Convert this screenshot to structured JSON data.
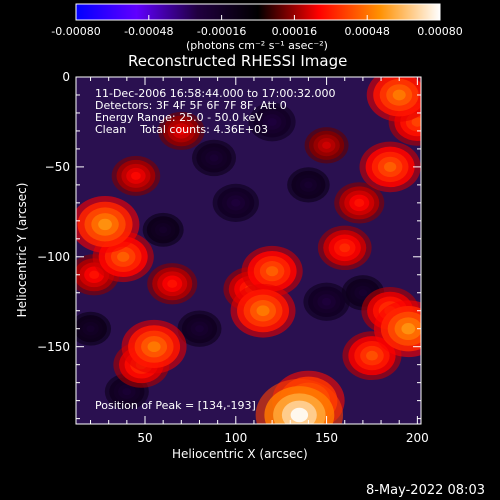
{
  "colorbar": {
    "tick_labels": [
      "-0.00080",
      "-0.00048",
      "-0.00016",
      "0.00016",
      "0.00048",
      "0.00080"
    ],
    "tick_values": [
      -0.0008,
      -0.00048,
      -0.00016,
      0.00016,
      0.00048,
      0.0008
    ],
    "range": [
      -0.0008,
      0.0008
    ],
    "units_label": "(photons cm⁻² s⁻¹ asec⁻²)",
    "colors": [
      "#0000ff",
      "#6000ff",
      "#200040",
      "#000000",
      "#ff0000",
      "#ff9000",
      "#ffffff"
    ]
  },
  "chart_data": {
    "type": "heatmap",
    "title": "Reconstructed RHESSI Image",
    "xlabel": "Heliocentric X (arcsec)",
    "ylabel": "Heliocentric Y (arcsec)",
    "xlim": [
      12,
      202
    ],
    "ylim": [
      -193,
      0
    ],
    "x_ticks": [
      50,
      100,
      150,
      200
    ],
    "y_ticks": [
      0,
      -50,
      -100,
      -150
    ],
    "x_tick_labels": [
      "50",
      "100",
      "150",
      "200"
    ],
    "y_tick_labels": [
      "0",
      "−50",
      "−100",
      "−150"
    ],
    "annotations": [
      "11-Dec-2006 16:58:44.000 to 17:00:32.000",
      "Detectors: 3F 4F 5F 6F 7F 8F, Att 0",
      "Energy Range: 25.0 - 50.0 keV",
      "Clean    Total counts: 4.36E+03"
    ],
    "peak_label": "Position of Peak = [134,-193]",
    "peak_position": [
      134,
      -193
    ],
    "blobs": [
      {
        "x": 135,
        "y": -188,
        "value": 0.0008
      },
      {
        "x": 140,
        "y": -180,
        "value": 0.0006
      },
      {
        "x": 195,
        "y": -140,
        "value": 0.00055
      },
      {
        "x": 185,
        "y": -130,
        "value": 0.0004
      },
      {
        "x": 175,
        "y": -155,
        "value": 0.00042
      },
      {
        "x": 115,
        "y": -130,
        "value": 0.0005
      },
      {
        "x": 120,
        "y": -108,
        "value": 0.00045
      },
      {
        "x": 108,
        "y": -118,
        "value": 0.00035
      },
      {
        "x": 55,
        "y": -150,
        "value": 0.0005
      },
      {
        "x": 48,
        "y": -160,
        "value": 0.00038
      },
      {
        "x": 28,
        "y": -82,
        "value": 0.00055
      },
      {
        "x": 38,
        "y": -100,
        "value": 0.00045
      },
      {
        "x": 22,
        "y": -110,
        "value": 0.0003
      },
      {
        "x": 65,
        "y": -115,
        "value": 0.0003
      },
      {
        "x": 160,
        "y": -95,
        "value": 0.00035
      },
      {
        "x": 168,
        "y": -70,
        "value": 0.0003
      },
      {
        "x": 185,
        "y": -50,
        "value": 0.00045
      },
      {
        "x": 200,
        "y": -25,
        "value": 0.0004
      },
      {
        "x": 190,
        "y": -10,
        "value": 0.0005
      },
      {
        "x": 45,
        "y": -55,
        "value": 0.00028
      },
      {
        "x": 70,
        "y": -30,
        "value": 0.00025
      },
      {
        "x": 150,
        "y": -38,
        "value": 0.00022
      },
      {
        "x": 100,
        "y": -70,
        "value": -0.00025
      },
      {
        "x": 88,
        "y": -45,
        "value": -0.00022
      },
      {
        "x": 140,
        "y": -60,
        "value": -0.0002
      },
      {
        "x": 80,
        "y": -140,
        "value": -0.00022
      },
      {
        "x": 150,
        "y": -125,
        "value": -0.00025
      },
      {
        "x": 40,
        "y": -175,
        "value": -0.00022
      },
      {
        "x": 120,
        "y": -25,
        "value": -0.00026
      },
      {
        "x": 170,
        "y": -120,
        "value": -0.0002
      },
      {
        "x": 60,
        "y": -85,
        "value": -0.00018
      },
      {
        "x": 20,
        "y": -140,
        "value": -0.00018
      }
    ]
  },
  "timestamp": "8-May-2022 08:03"
}
